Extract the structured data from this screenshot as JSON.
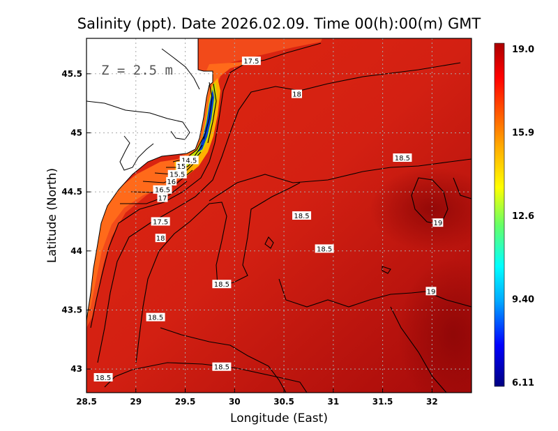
{
  "chart_data": {
    "type": "heatmap",
    "title": "Salinity (ppt). Date 2026.02.09. Time 00(h):00(m) GMT",
    "xlabel": "Longitude (East)",
    "ylabel": "Latitude (North)",
    "annotation": "Z = 2.5 m",
    "xlim": [
      28.5,
      32.4
    ],
    "ylim": [
      42.8,
      45.8
    ],
    "x_ticks": [
      "28.5",
      "29",
      "29.5",
      "30",
      "30.5",
      "31",
      "31.5",
      "32"
    ],
    "y_ticks": [
      "43",
      "43.5",
      "44",
      "44.5",
      "45",
      "45.5"
    ],
    "grid": true,
    "colorbar": {
      "min": 6.11,
      "max": 19.0,
      "tick_labels": [
        "19.0",
        "15.9",
        "12.6",
        "9.40",
        "6.11"
      ],
      "colors": [
        "#000080",
        "#0000ff",
        "#00aaff",
        "#00ffff",
        "#66ff66",
        "#ffff00",
        "#ffaa00",
        "#ff5500",
        "#ff0000",
        "#aa0000"
      ]
    },
    "contour_labels": [
      {
        "text": "17.5",
        "lon": 30.17,
        "lat": 45.61
      },
      {
        "text": "18",
        "lon": 30.63,
        "lat": 45.33
      },
      {
        "text": "18.5",
        "lon": 31.7,
        "lat": 44.79
      },
      {
        "text": "14.5",
        "lon": 29.54,
        "lat": 44.77
      },
      {
        "text": "15",
        "lon": 29.46,
        "lat": 44.72
      },
      {
        "text": "15.5",
        "lon": 29.42,
        "lat": 44.65
      },
      {
        "text": "16",
        "lon": 29.36,
        "lat": 44.59
      },
      {
        "text": "16.5",
        "lon": 29.27,
        "lat": 44.52
      },
      {
        "text": "17",
        "lon": 29.27,
        "lat": 44.45
      },
      {
        "text": "17.5",
        "lon": 29.25,
        "lat": 44.25
      },
      {
        "text": "18",
        "lon": 29.25,
        "lat": 44.11
      },
      {
        "text": "18.5",
        "lon": 30.68,
        "lat": 44.3
      },
      {
        "text": "19",
        "lon": 32.06,
        "lat": 44.24
      },
      {
        "text": "18.5",
        "lon": 30.91,
        "lat": 44.02
      },
      {
        "text": "18.5",
        "lon": 29.87,
        "lat": 43.72
      },
      {
        "text": "19",
        "lon": 31.99,
        "lat": 43.66
      },
      {
        "text": "18.5",
        "lon": 29.2,
        "lat": 43.44
      },
      {
        "text": "18.5",
        "lon": 29.87,
        "lat": 43.02
      },
      {
        "text": "18.5",
        "lon": 28.67,
        "lat": 42.93
      }
    ]
  }
}
